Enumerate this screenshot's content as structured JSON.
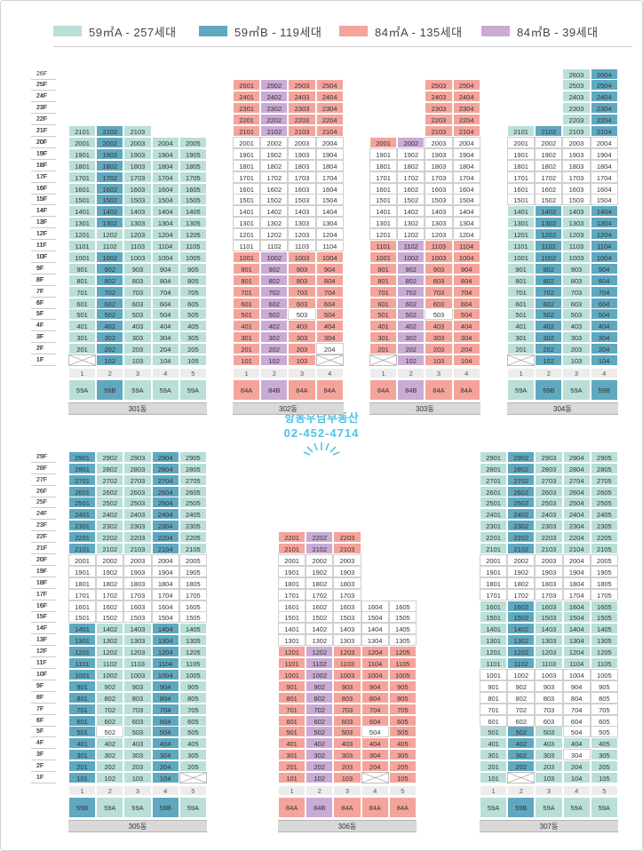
{
  "colors": {
    "59A": "#b9dfd8",
    "59B": "#5fa8c0",
    "84A": "#f4a49b",
    "84B": "#c9abd5",
    "empty": "#ffffff"
  },
  "legend": [
    {
      "type": "59A",
      "label": "59㎡A - 257세대"
    },
    {
      "type": "59B",
      "label": "59㎡B - 119세대"
    },
    {
      "type": "84A",
      "label": "84㎡A - 135세대"
    },
    {
      "type": "84B",
      "label": "84㎡B - 39세대"
    }
  ],
  "agent": {
    "name": "항동우남부동산",
    "phone": "02-452-4714"
  },
  "buildings": [
    {
      "name": "301동",
      "max": 21,
      "lines": [
        "1",
        "2",
        "3",
        "4",
        "5"
      ],
      "types": [
        "59A",
        "59B",
        "59A",
        "59A",
        "59A"
      ],
      "base": "59A",
      "top": [
        21,
        21,
        21,
        20,
        20
      ],
      "hl": [
        20,
        19,
        20,
        21,
        20,
        21,
        20,
        20,
        21,
        21,
        20,
        20,
        21,
        20,
        20,
        21
      ]
    },
    {
      "name": "302동",
      "max": 25,
      "lines": [
        "1",
        "2",
        "3",
        "4"
      ],
      "types": [
        "84A",
        "84B",
        "84A",
        "84A"
      ],
      "base": "84A",
      "top": [
        25,
        25,
        25,
        25
      ],
      "hl": []
    },
    {
      "name": "303동",
      "max": 25,
      "lines": [
        "1",
        "2",
        "3",
        "4"
      ],
      "types": [
        "84A",
        "84B",
        "84A",
        "84A"
      ],
      "base": "84A",
      "top": [
        20,
        20,
        25,
        25
      ],
      "hl": []
    },
    {
      "name": "304동",
      "max": 26,
      "lines": [
        "1",
        "2",
        "3",
        "4"
      ],
      "types": [
        "59A",
        "59B",
        "59A",
        "59B"
      ],
      "base": "59A",
      "top": [
        21,
        21,
        26,
        26
      ],
      "hl": []
    },
    {
      "name": "305동",
      "max": 29,
      "lines": [
        "1",
        "2",
        "3",
        "4",
        "5"
      ],
      "types": [
        "59B",
        "59A",
        "59A",
        "59B",
        "59A"
      ],
      "base": "59A",
      "top": [
        29,
        29,
        29,
        29,
        29
      ],
      "hl": []
    },
    {
      "name": "306동",
      "max": 22,
      "lines": [
        "1",
        "2",
        "3",
        "4",
        "5"
      ],
      "types": [
        "84A",
        "84B",
        "84A",
        "84A",
        "84A"
      ],
      "base": "84A",
      "top": [
        22,
        22,
        22,
        16,
        16
      ],
      "hl": []
    },
    {
      "name": "307동",
      "max": 29,
      "lines": [
        "1",
        "2",
        "3",
        "4",
        "5"
      ],
      "types": [
        "59A",
        "59B",
        "59A",
        "59A",
        "59A"
      ],
      "base": "59A",
      "top": [
        29,
        29,
        29,
        29,
        29
      ],
      "hl": []
    }
  ]
}
